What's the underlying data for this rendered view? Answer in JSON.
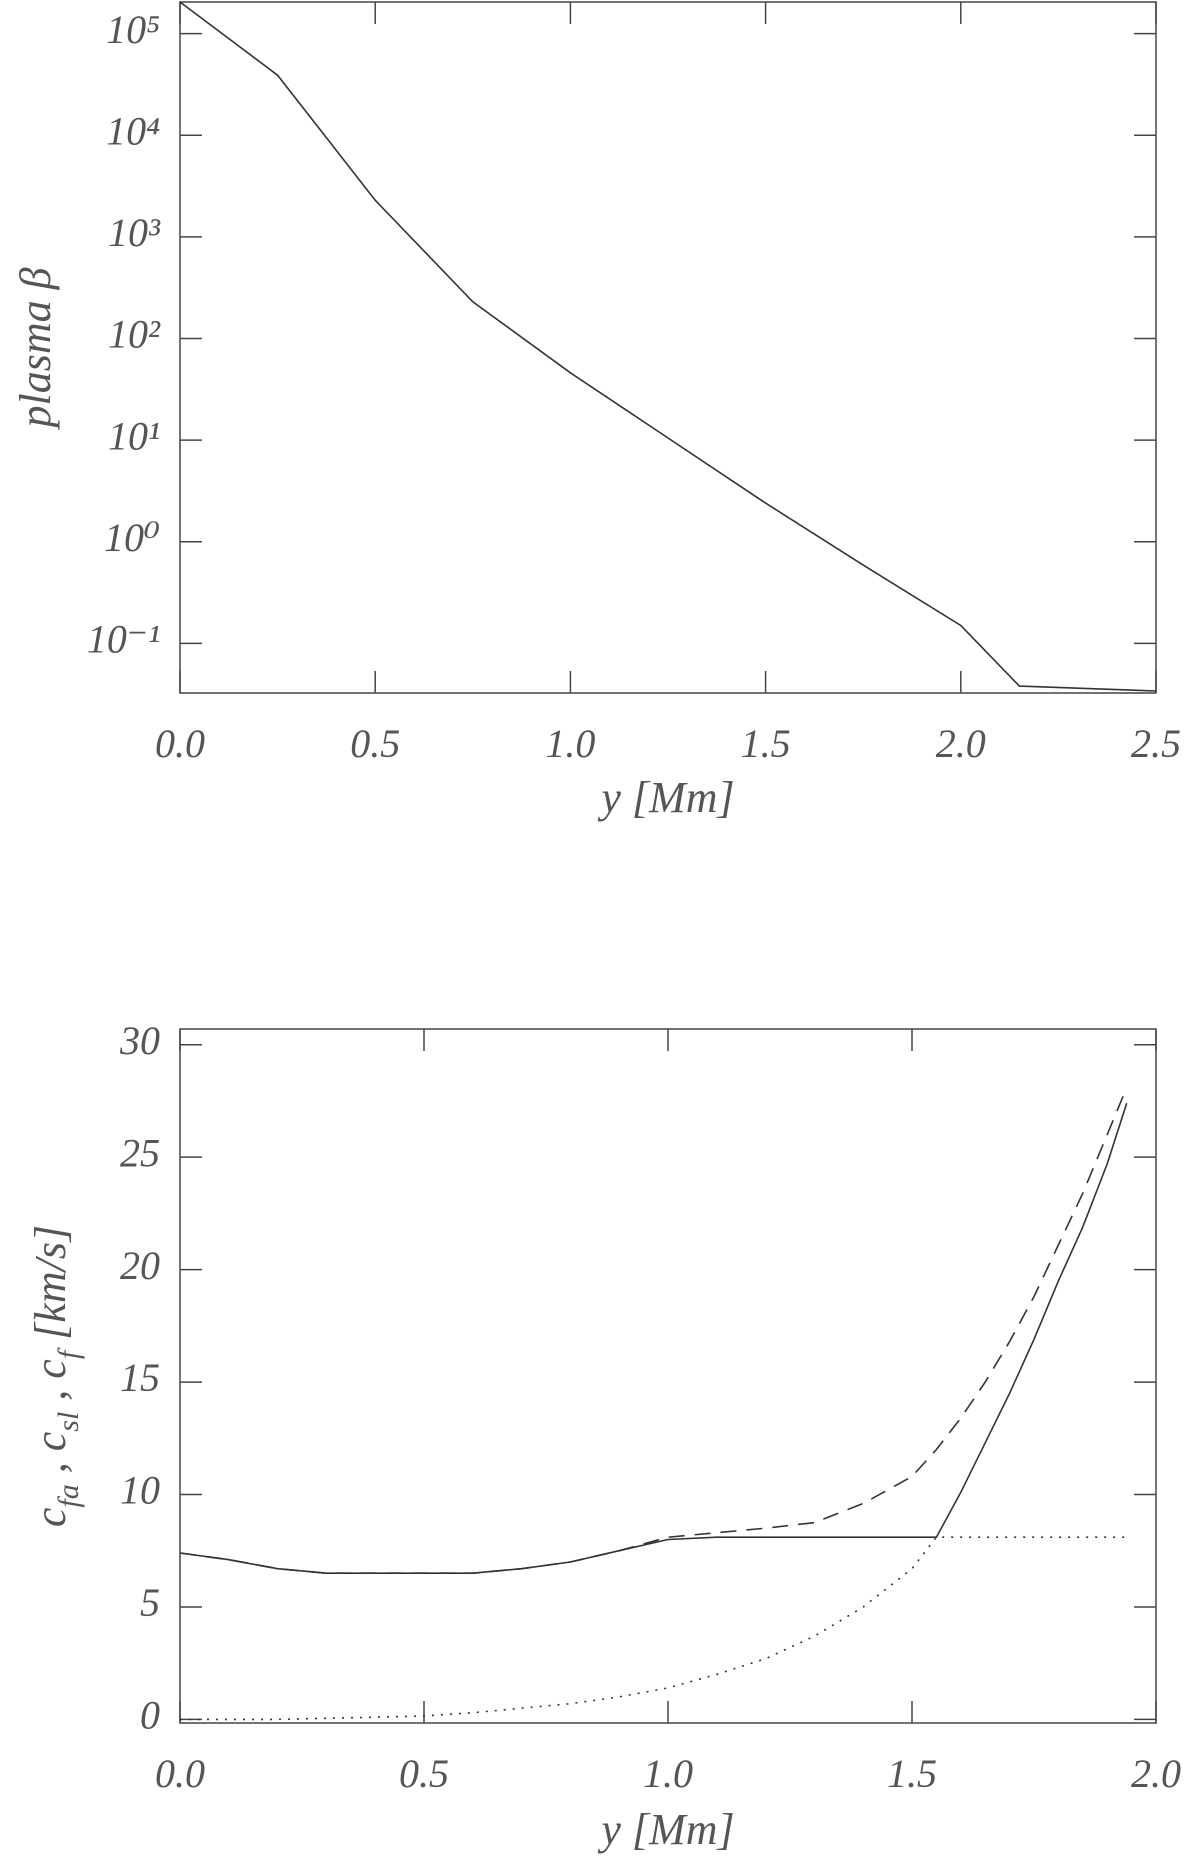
{
  "chart_data": [
    {
      "type": "line",
      "log_y": true,
      "xlabel": "y [Mm]",
      "ylabel": "plasma β",
      "xlim": [
        0,
        2.5
      ],
      "ylim": [
        0.0325,
        205000
      ],
      "xticks": [
        {
          "value": 0,
          "label": "0.0"
        },
        0.5,
        {
          "value": 1,
          "label": "1.0"
        },
        1.5,
        {
          "value": 2,
          "label": "2.0"
        },
        2.5
      ],
      "yticks": [
        {
          "value": 0.1,
          "label": "10⁻¹"
        },
        {
          "value": 1,
          "label": "10⁰"
        },
        {
          "value": 10,
          "label": "10¹"
        },
        {
          "value": 100,
          "label": "10²"
        },
        {
          "value": 1000,
          "label": "10³"
        },
        {
          "value": 10000,
          "label": "10⁴"
        },
        {
          "value": 100000,
          "label": "10⁵"
        }
      ],
      "x": [
        0,
        0.25,
        0.5,
        0.75,
        1.0,
        1.25,
        1.5,
        1.75,
        2.0,
        2.15,
        2.5
      ],
      "series": [
        {
          "color": "#333333",
          "style": "solid",
          "values": [
            205000,
            39000,
            2300,
            230,
            46,
            10.5,
            2.4,
            0.59,
            0.15,
            0.038,
            0.034
          ]
        }
      ]
    },
    {
      "type": "line",
      "log_y": false,
      "xlabel": "y [Mm]",
      "ylabel": [
        "c",
        "fa",
        " ,  c",
        "sl",
        " ,  c",
        "f",
        " [km/s]"
      ],
      "xlim": [
        0,
        2.0
      ],
      "ylim": [
        -0.16,
        30.7
      ],
      "xticks": [
        {
          "value": 0,
          "label": "0.0"
        },
        0.5,
        {
          "value": 1,
          "label": "1.0"
        },
        1.5,
        {
          "value": 2,
          "label": "2.0"
        }
      ],
      "yticks": [
        0,
        5,
        10,
        15,
        20,
        25,
        30
      ],
      "x": [
        0,
        0.1,
        0.2,
        0.3,
        0.4,
        0.5,
        0.6,
        0.7,
        0.8,
        0.9,
        1.0,
        1.1,
        1.2,
        1.3,
        1.4,
        1.5,
        1.55,
        1.6,
        1.65,
        1.7,
        1.75,
        1.8,
        1.85,
        1.9,
        1.94
      ],
      "series": [
        {
          "color": "#333333",
          "style": "solid",
          "values": [
            7.4,
            7.1,
            6.7,
            6.5,
            6.5,
            6.5,
            6.5,
            6.7,
            7.0,
            7.5,
            8.0,
            8.1,
            8.1,
            8.1,
            8.1,
            8.1,
            8.1,
            10.1,
            12.3,
            14.5,
            16.9,
            19.5,
            21.9,
            24.7,
            27.4
          ]
        },
        {
          "color": "#333333",
          "style": "dashed",
          "values": [
            7.4,
            7.1,
            6.7,
            6.5,
            6.5,
            6.5,
            6.5,
            6.7,
            7.0,
            7.5,
            8.1,
            8.3,
            8.5,
            8.75,
            9.6,
            10.8,
            12.0,
            13.4,
            15.0,
            16.8,
            18.8,
            21.1,
            23.4,
            26.0,
            28.1
          ]
        },
        {
          "color": "#333333",
          "style": "dotted",
          "values": [
            0.0,
            0.0,
            0.0,
            0.05,
            0.1,
            0.15,
            0.3,
            0.5,
            0.7,
            1.0,
            1.4,
            2.0,
            2.7,
            3.7,
            5.0,
            6.7,
            8.1,
            8.1,
            8.1,
            8.1,
            8.1,
            8.1,
            8.1,
            8.1,
            8.1
          ]
        }
      ]
    }
  ]
}
